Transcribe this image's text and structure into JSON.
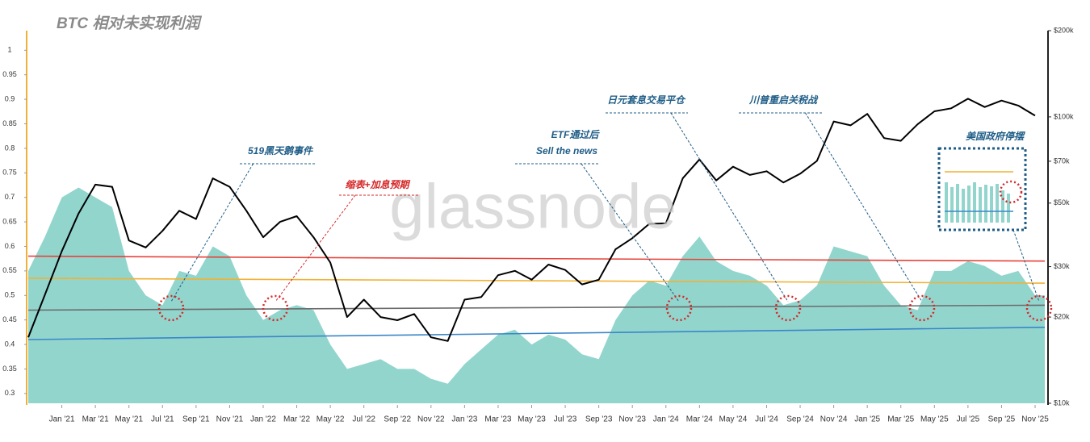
{
  "chart_data": {
    "type": "area-line",
    "title": "BTC 相对未实现利润",
    "watermark": "glassnode",
    "x": [
      "2020-11",
      "2020-12",
      "2021-01",
      "2021-02",
      "2021-03",
      "2021-04",
      "2021-05",
      "2021-06",
      "2021-07",
      "2021-08",
      "2021-09",
      "2021-10",
      "2021-11",
      "2021-12",
      "2022-01",
      "2022-02",
      "2022-03",
      "2022-04",
      "2022-05",
      "2022-06",
      "2022-07",
      "2022-08",
      "2022-09",
      "2022-10",
      "2022-11",
      "2022-12",
      "2023-01",
      "2023-02",
      "2023-03",
      "2023-04",
      "2023-05",
      "2023-06",
      "2023-07",
      "2023-08",
      "2023-09",
      "2023-10",
      "2023-11",
      "2023-12",
      "2024-01",
      "2024-02",
      "2024-03",
      "2024-04",
      "2024-05",
      "2024-06",
      "2024-07",
      "2024-08",
      "2024-09",
      "2024-10",
      "2024-11",
      "2024-12",
      "2025-01",
      "2025-02",
      "2025-03",
      "2025-04",
      "2025-05",
      "2025-06",
      "2025-07",
      "2025-08",
      "2025-09",
      "2025-10",
      "2025-11"
    ],
    "series": [
      {
        "type": "area",
        "color": "#92d5cd",
        "values": [
          0.55,
          0.62,
          0.7,
          0.72,
          0.7,
          0.68,
          0.55,
          0.5,
          0.48,
          0.55,
          0.54,
          0.6,
          0.58,
          0.5,
          0.45,
          0.47,
          0.48,
          0.47,
          0.4,
          0.35,
          0.36,
          0.37,
          0.35,
          0.35,
          0.33,
          0.32,
          0.36,
          0.39,
          0.42,
          0.43,
          0.4,
          0.42,
          0.41,
          0.38,
          0.37,
          0.45,
          0.5,
          0.53,
          0.52,
          0.58,
          0.62,
          0.57,
          0.55,
          0.54,
          0.52,
          0.48,
          0.49,
          0.52,
          0.6,
          0.59,
          0.58,
          0.52,
          0.48,
          0.47,
          0.55,
          0.55,
          0.57,
          0.56,
          0.54,
          0.55,
          0.5
        ]
      },
      {
        "type": "line",
        "axis": "y2",
        "color": "#000000",
        "values": [
          17000,
          24000,
          34000,
          46000,
          58000,
          57000,
          37000,
          35000,
          40000,
          47000,
          44000,
          61000,
          57000,
          47000,
          38000,
          43000,
          45000,
          38000,
          31000,
          20000,
          23000,
          20000,
          19500,
          20500,
          17000,
          16500,
          23000,
          23500,
          28000,
          29000,
          27000,
          30500,
          29200,
          26000,
          27000,
          34500,
          37700,
          42300,
          42500,
          61000,
          71000,
          60000,
          67000,
          62700,
          64600,
          59000,
          63300,
          70200,
          96400,
          93400,
          102400,
          84300,
          82500,
          94200,
          104600,
          107100,
          115700,
          108200,
          114000,
          109500,
          101000
        ]
      },
      {
        "type": "line",
        "color": "#e8423a",
        "x": [
          "2020-11",
          "2025-11"
        ],
        "values": [
          0.58,
          0.57
        ]
      },
      {
        "type": "line",
        "color": "#f2b134",
        "x": [
          "2020-11",
          "2025-11"
        ],
        "values": [
          0.535,
          0.525
        ]
      },
      {
        "type": "line",
        "color": "#6b6b6b",
        "x": [
          "2020-11",
          "2025-11"
        ],
        "values": [
          0.47,
          0.48
        ]
      },
      {
        "type": "line",
        "color": "#3a86c8",
        "x": [
          "2020-11",
          "2025-11"
        ],
        "values": [
          0.41,
          0.435
        ]
      }
    ],
    "xlim": [
      "2020-11",
      "2025-11"
    ],
    "xticks": [
      {
        "value": "2021-01",
        "label": "Jan '21"
      },
      {
        "value": "2021-03",
        "label": "Mar '21"
      },
      {
        "value": "2021-05",
        "label": "May '21"
      },
      {
        "value": "2021-07",
        "label": "Jul '21"
      },
      {
        "value": "2021-09",
        "label": "Sep '21"
      },
      {
        "value": "2021-11",
        "label": "Nov '21"
      },
      {
        "value": "2022-01",
        "label": "Jan '22"
      },
      {
        "value": "2022-03",
        "label": "Mar '22"
      },
      {
        "value": "2022-05",
        "label": "May '22"
      },
      {
        "value": "2022-07",
        "label": "Jul '22"
      },
      {
        "value": "2022-09",
        "label": "Sep '22"
      },
      {
        "value": "2022-11",
        "label": "Nov '22"
      },
      {
        "value": "2023-01",
        "label": "Jan '23"
      },
      {
        "value": "2023-03",
        "label": "Mar '23"
      },
      {
        "value": "2023-05",
        "label": "May '23"
      },
      {
        "value": "2023-07",
        "label": "Jul '23"
      },
      {
        "value": "2023-09",
        "label": "Sep '23"
      },
      {
        "value": "2023-11",
        "label": "Nov '23"
      },
      {
        "value": "2024-01",
        "label": "Jan '24"
      },
      {
        "value": "2024-03",
        "label": "Mar '24"
      },
      {
        "value": "2024-05",
        "label": "May '24"
      },
      {
        "value": "2024-07",
        "label": "Jul '24"
      },
      {
        "value": "2024-09",
        "label": "Sep '24"
      },
      {
        "value": "2024-11",
        "label": "Nov '24"
      },
      {
        "value": "2025-01",
        "label": "Jan '25"
      },
      {
        "value": "2025-03",
        "label": "Mar '25"
      },
      {
        "value": "2025-05",
        "label": "May '25"
      },
      {
        "value": "2025-07",
        "label": "Jul '25"
      },
      {
        "value": "2025-09",
        "label": "Sep '25"
      },
      {
        "value": "2025-11",
        "label": "Nov '25"
      }
    ],
    "ylim": [
      0.28,
      1.04
    ],
    "yticks": [
      0.3,
      0.35,
      0.4,
      0.45,
      0.5,
      0.55,
      0.6,
      0.65,
      0.7,
      0.75,
      0.8,
      0.85,
      0.9,
      0.95,
      1
    ],
    "y2lim": [
      10000,
      200000
    ],
    "y2scale": "log",
    "y2ticks": [
      {
        "value": 10000,
        "label": "$10k"
      },
      {
        "value": 20000,
        "label": "$20k"
      },
      {
        "value": 30000,
        "label": "$30k"
      },
      {
        "value": 50000,
        "label": "$50k"
      },
      {
        "value": 70000,
        "label": "$70k"
      },
      {
        "value": 100000,
        "label": "$100k"
      },
      {
        "value": 200000,
        "label": "$200k"
      }
    ],
    "annotations": [
      {
        "text": "519黑天鹅事件",
        "color": "#1f5d87"
      },
      {
        "text": "缩表+加息预期",
        "color": "#d62728"
      },
      {
        "text": "ETF通过后",
        "color": "#1f5d87"
      },
      {
        "text": "Sell the news",
        "color": "#1f5d87"
      },
      {
        "text": "日元套息交易平仓",
        "color": "#1f5d87"
      },
      {
        "text": "川普重启关税战",
        "color": "#1f5d87"
      },
      {
        "text": "美国政府停摆",
        "color": "#1f5d87"
      }
    ]
  }
}
